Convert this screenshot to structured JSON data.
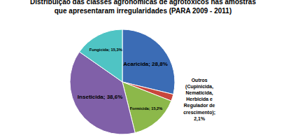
{
  "chart_data": {
    "type": "pie",
    "title": "Distribuição das classes agronômicas de agrotóxicos nas amostras",
    "subtitle": "que apresentaram irregularidades (PARA 2009 - 2011)",
    "categories": [
      "Acaricida",
      "Outros",
      "Formicida",
      "Inseticida",
      "Fungicida"
    ],
    "values": [
      28.8,
      2.1,
      15.2,
      38.6,
      15.3
    ],
    "value_labels": [
      "Acaricida; 28,8%",
      "Outros\n(Cupinicida,\nNematicida,\nHerbicida e\nRegulador de\ncrescimento);\n2,1%",
      "Formicida; 15,2%",
      "Inseticida; 38,6%",
      "Fungicida; 15,3%"
    ],
    "colors": [
      "#3B6CB5",
      "#C8463C",
      "#8CB84A",
      "#8060A8",
      "#4FC4C4"
    ],
    "data_labels": true
  }
}
